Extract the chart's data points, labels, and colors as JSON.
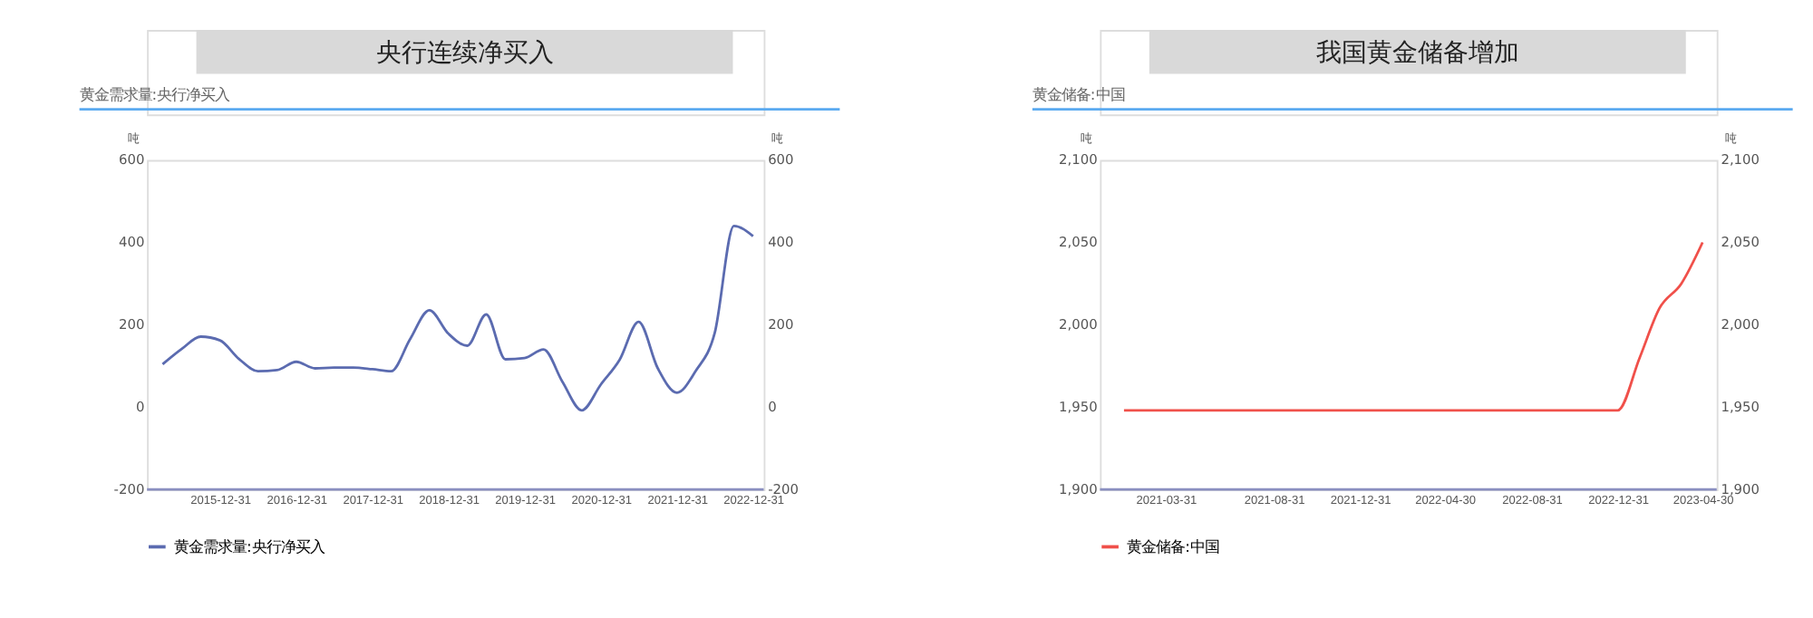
{
  "chart_data": [
    {
      "type": "line",
      "title": "央行连续净买入",
      "subtitle": "黄金需求量:央行净买入",
      "ylabel": "吨",
      "y2label": "吨",
      "x": [
        "2015-03-31",
        "2015-06-30",
        "2015-09-30",
        "2015-12-31",
        "2016-03-31",
        "2016-06-30",
        "2016-09-30",
        "2016-12-31",
        "2017-03-31",
        "2017-06-30",
        "2017-09-30",
        "2017-12-31",
        "2018-03-31",
        "2018-06-30",
        "2018-09-30",
        "2018-12-31",
        "2019-03-31",
        "2019-06-30",
        "2019-09-30",
        "2019-12-31",
        "2020-03-31",
        "2020-06-30",
        "2020-09-30",
        "2020-12-31",
        "2021-03-31",
        "2021-06-30",
        "2021-09-30",
        "2021-12-31",
        "2022-03-31",
        "2022-06-30",
        "2022-09-30",
        "2022-12-31"
      ],
      "series": [
        {
          "name": "黄金需求量:央行净买入",
          "color": "#5b6bb0",
          "values": [
            104,
            141,
            171,
            162,
            117,
            87,
            90,
            110,
            94,
            96,
            96,
            92,
            87,
            165,
            235,
            178,
            149,
            225,
            116,
            119,
            140,
            61,
            -8,
            55,
            115,
            207,
            94,
            35,
            88,
            180,
            440,
            415
          ]
        }
      ],
      "xlim": [
        "2015-01-15",
        "2023-02-20"
      ],
      "xticks": [
        "2015-12-31",
        "2016-12-31",
        "2017-12-31",
        "2018-12-31",
        "2019-12-31",
        "2020-12-31",
        "2021-12-31",
        "2022-12-31"
      ],
      "ylim": [
        -200,
        600
      ],
      "yticks": [
        -200,
        0,
        200,
        400,
        600
      ],
      "y2lim": [
        -200,
        600
      ],
      "y2ticks": [
        -200,
        0,
        200,
        400,
        600
      ],
      "grid": false,
      "legend": "bottom",
      "marker": "none"
    },
    {
      "type": "line",
      "title": "我国黄金储备增加",
      "subtitle": "黄金储备:中国",
      "ylabel": "吨",
      "y2label": "吨",
      "x": [
        "2021-01-31",
        "2021-02-28",
        "2021-03-31",
        "2021-04-30",
        "2021-05-31",
        "2021-06-30",
        "2021-07-31",
        "2021-08-31",
        "2021-09-30",
        "2021-10-31",
        "2021-11-30",
        "2021-12-31",
        "2022-01-31",
        "2022-02-28",
        "2022-03-31",
        "2022-04-30",
        "2022-05-31",
        "2022-06-30",
        "2022-07-31",
        "2022-08-31",
        "2022-09-30",
        "2022-10-31",
        "2022-11-30",
        "2022-12-31",
        "2023-01-31",
        "2023-02-28",
        "2023-03-31",
        "2023-04-30"
      ],
      "series": [
        {
          "name": "黄金储备:中国",
          "color": "#f0504a",
          "values": [
            1948,
            1948,
            1948,
            1948,
            1948,
            1948,
            1948,
            1948,
            1948,
            1948,
            1948,
            1948,
            1948,
            1948,
            1948,
            1948,
            1948,
            1948,
            1948,
            1948,
            1948,
            1948,
            1948,
            1948,
            1980,
            2010,
            2025,
            2050
          ]
        }
      ],
      "xlim": [
        "2020-12-28",
        "2023-05-20"
      ],
      "xticks": [
        "2021-03-31",
        "2021-08-31",
        "2021-12-31",
        "2022-04-30",
        "2022-08-31",
        "2022-12-31",
        "2023-04-30"
      ],
      "ylim": [
        1900,
        2100
      ],
      "yticks": [
        {
          "value": 1900,
          "label": "1,900"
        },
        {
          "value": 1950,
          "label": "1,950"
        },
        {
          "value": 2000,
          "label": "2,000"
        },
        {
          "value": 2050,
          "label": "2,050"
        },
        {
          "value": 2100,
          "label": "2,100"
        }
      ],
      "y2lim": [
        1900,
        2100
      ],
      "y2ticks": [
        {
          "value": 1900,
          "label": "1,900"
        },
        {
          "value": 1950,
          "label": "1,950"
        },
        {
          "value": 2000,
          "label": "2,000"
        },
        {
          "value": 2050,
          "label": "2,050"
        },
        {
          "value": 2100,
          "label": "2,100"
        }
      ],
      "grid": false,
      "legend": "bottom",
      "marker": "none"
    }
  ]
}
